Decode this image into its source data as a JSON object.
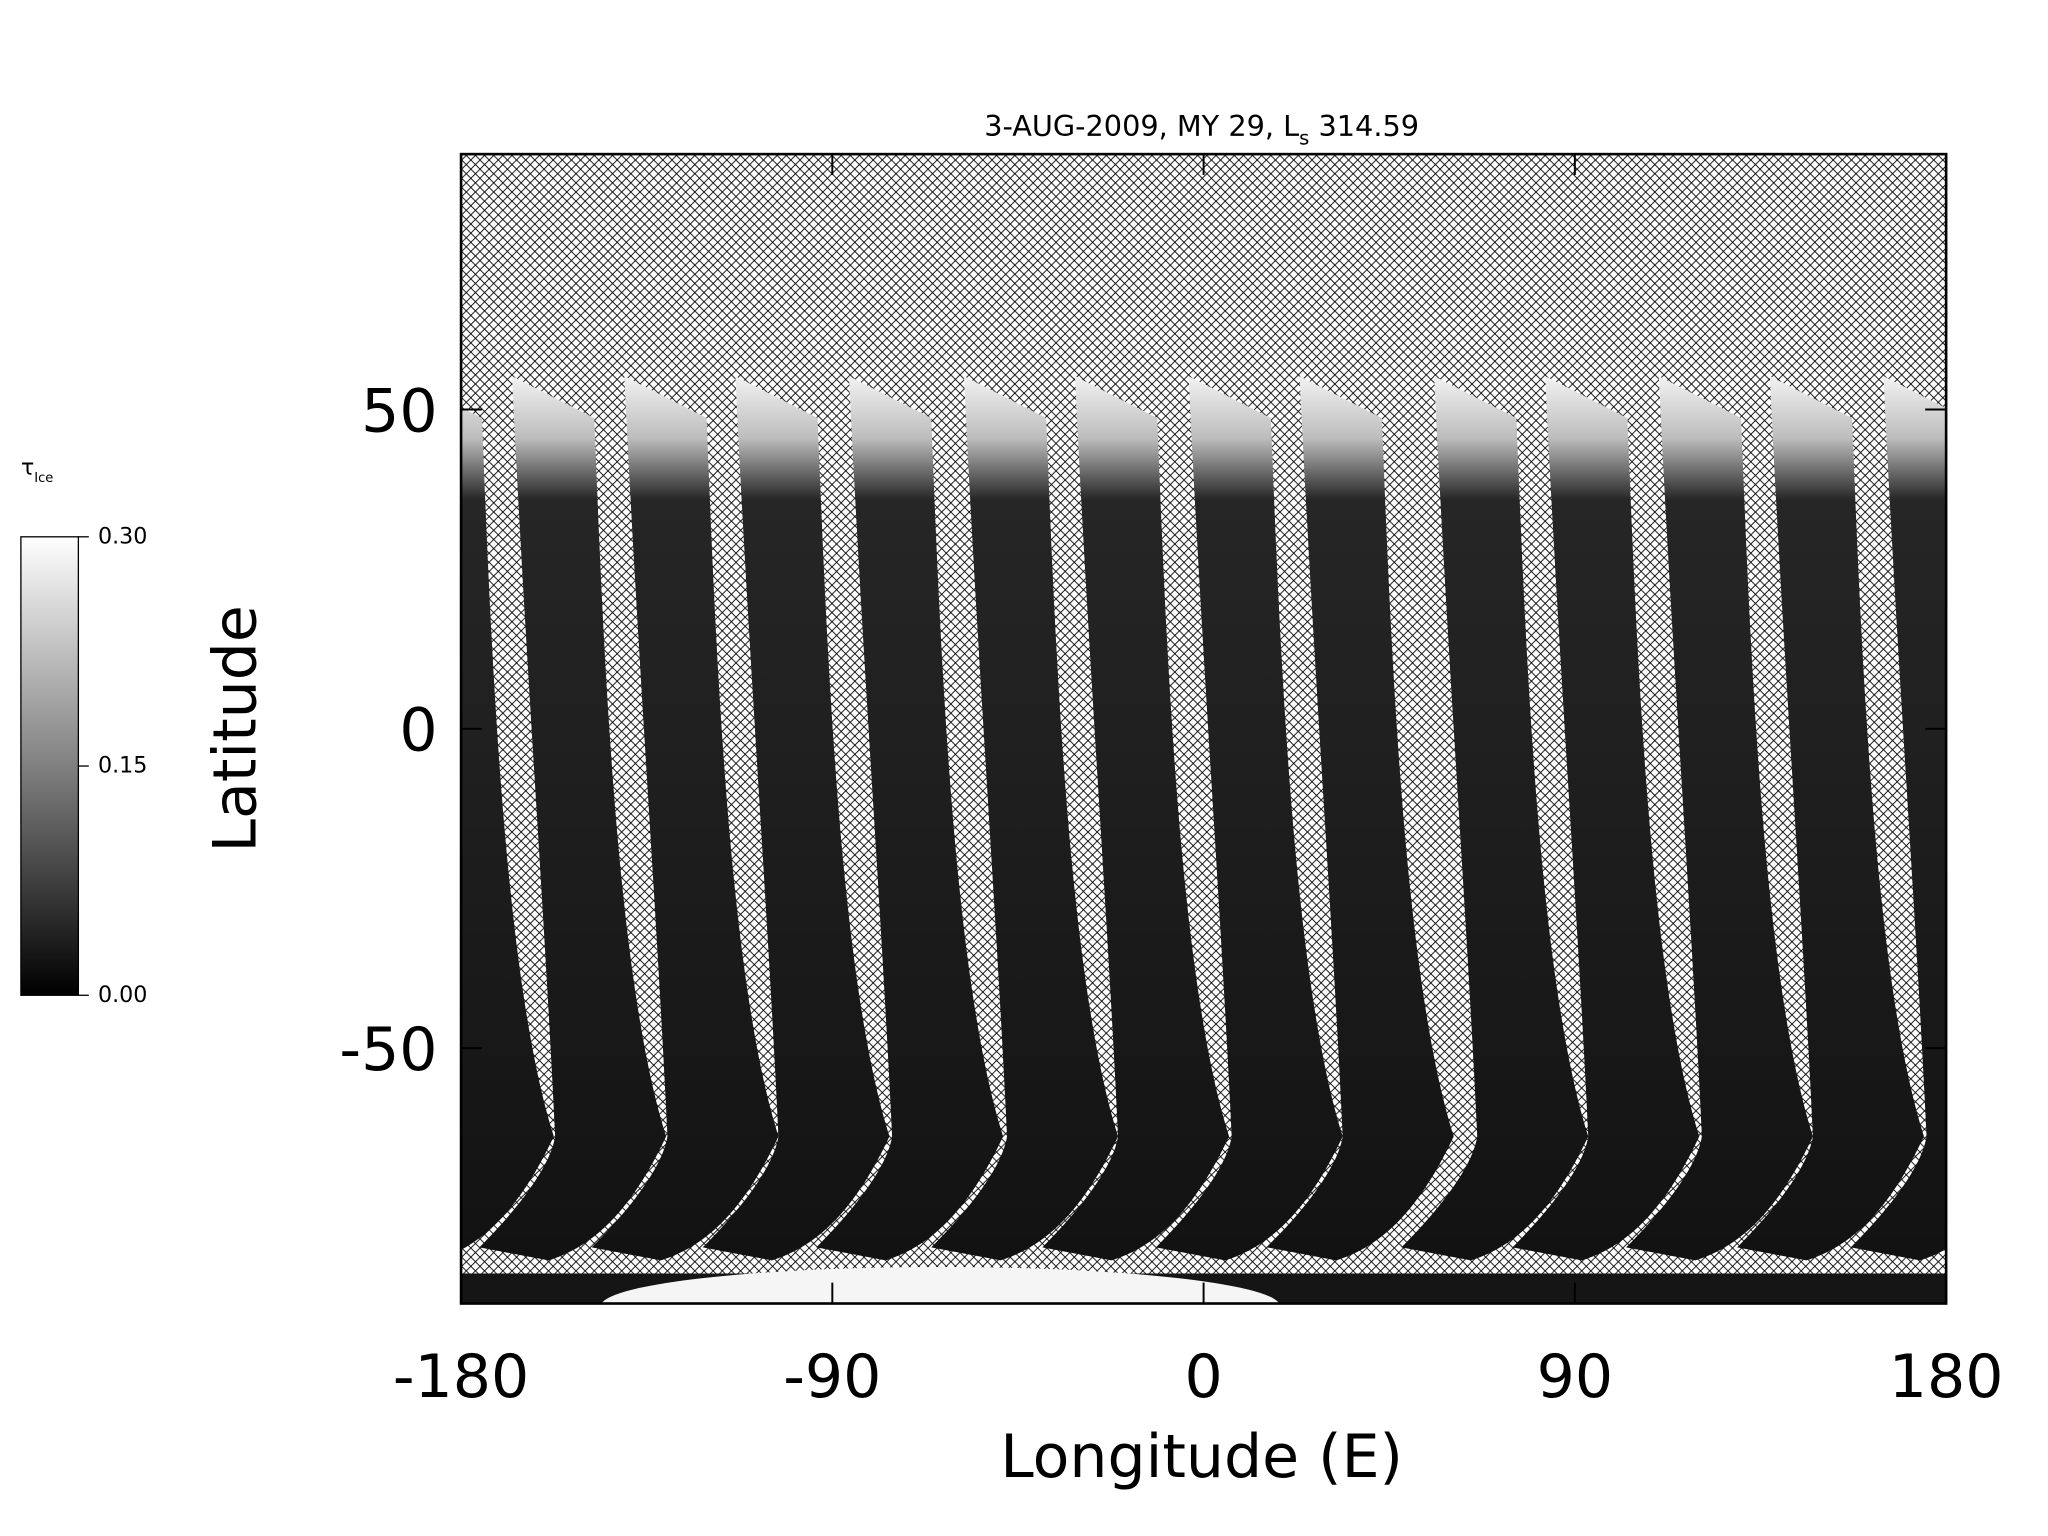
{
  "chart_data": {
    "type": "map",
    "title": "3-AUG-2009, MY 29,",
    "title_symbol": "L",
    "title_subscript": "s",
    "title_value": "314.59",
    "x_label": "Longitude (E)",
    "y_label": "Latitude",
    "xlim": [
      -180,
      180
    ],
    "ylim": [
      -90,
      90
    ],
    "xticks": [
      -180,
      -90,
      0,
      90,
      180
    ],
    "yticks": [
      -50,
      0,
      50
    ],
    "colorbar": {
      "label": "τ",
      "label_subscript": "Ice",
      "lim": [
        0,
        0.3
      ],
      "colors": [
        "#000000",
        "#ffffff"
      ],
      "ticks": [
        {
          "value": 0,
          "label": "0.00"
        },
        {
          "value": 0.15,
          "label": "0.15"
        },
        {
          "value": 0.3,
          "label": "0.30"
        }
      ]
    }
  }
}
